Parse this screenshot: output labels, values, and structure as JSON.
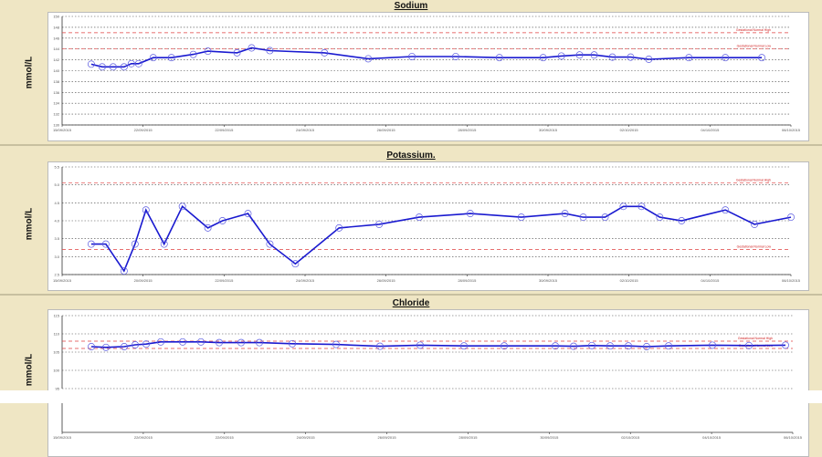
{
  "chart_data": [
    {
      "type": "line",
      "title": "Sodium",
      "ylabel": "mmol/L",
      "ylim": [
        130,
        150
      ],
      "yticks": [
        "150",
        "148",
        "146",
        "144",
        "142",
        "140",
        "138",
        "136",
        "134",
        "132",
        "130"
      ],
      "xlim": [
        0,
        100
      ],
      "xticks": [
        "15/09/2015",
        "22/09/2015",
        "22/09/2015",
        "24/09/2015",
        "26/09/2015",
        "28/09/2015",
        "30/09/2015",
        "02/10/2015",
        "04/10/2015",
        "06/10/2015"
      ],
      "ref_lines": [
        {
          "label": "Gestational Normal High",
          "value": 147
        },
        {
          "label": "Gestational Normal Low",
          "value": 144
        }
      ],
      "series": [
        {
          "points": [
            [
              4,
              141.2
            ],
            [
              5.5,
              140.7
            ],
            [
              7,
              140.7
            ],
            [
              8.5,
              140.7
            ],
            [
              9.5,
              141.3
            ],
            [
              10.5,
              141.3
            ],
            [
              12.5,
              142.4
            ],
            [
              15,
              142.4
            ],
            [
              18,
              143
            ],
            [
              20,
              143.6
            ],
            [
              24,
              143.3
            ],
            [
              26,
              144.2
            ],
            [
              28.5,
              143.7
            ],
            [
              36,
              143.3
            ],
            [
              42,
              142.2
            ],
            [
              48,
              142.6
            ],
            [
              54,
              142.6
            ],
            [
              60,
              142.4
            ],
            [
              66,
              142.4
            ],
            [
              68.5,
              142.7
            ],
            [
              71,
              142.9
            ],
            [
              73,
              142.9
            ],
            [
              75.5,
              142.5
            ],
            [
              78,
              142.5
            ],
            [
              80.5,
              142.1
            ],
            [
              86,
              142.4
            ],
            [
              91,
              142.4
            ],
            [
              96,
              142.4
            ]
          ]
        }
      ]
    },
    {
      "type": "line",
      "title": "Potassium.",
      "ylabel": "mmol/L",
      "ylim": [
        2.5,
        5.5
      ],
      "yticks": [
        "5.5",
        "5.0",
        "4.5",
        "4.0",
        "3.5",
        "3.0",
        "2.5"
      ],
      "xlim": [
        0,
        100
      ],
      "xticks": [
        "15/09/2015",
        "20/09/2015",
        "22/09/2015",
        "24/09/2015",
        "26/09/2015",
        "28/09/2015",
        "30/09/2015",
        "02/10/2015",
        "04/10/2015",
        "06/10/2015"
      ],
      "ref_lines": [
        {
          "label": "Gestational Normal High",
          "value": 5.05
        },
        {
          "label": "Gestational Normal Low",
          "value": 3.2
        }
      ],
      "series": [
        {
          "points": [
            [
              4,
              3.35
            ],
            [
              6,
              3.35
            ],
            [
              8.5,
              2.6
            ],
            [
              10,
              3.35
            ],
            [
              11.5,
              4.3
            ],
            [
              14,
              3.35
            ],
            [
              16.5,
              4.4
            ],
            [
              20,
              3.8
            ],
            [
              22,
              4.0
            ],
            [
              25.5,
              4.2
            ],
            [
              28.5,
              3.35
            ],
            [
              32,
              2.8
            ],
            [
              38,
              3.8
            ],
            [
              43.5,
              3.9
            ],
            [
              49,
              4.1
            ],
            [
              56,
              4.2
            ],
            [
              63,
              4.1
            ],
            [
              69,
              4.2
            ],
            [
              71.5,
              4.1
            ],
            [
              74.5,
              4.1
            ],
            [
              77,
              4.4
            ],
            [
              79.5,
              4.4
            ],
            [
              82,
              4.1
            ],
            [
              85,
              4.0
            ],
            [
              91,
              4.3
            ],
            [
              95,
              3.9
            ],
            [
              100,
              4.1
            ]
          ]
        }
      ]
    },
    {
      "type": "line",
      "title": "Chloride",
      "ylabel": "mmol/L",
      "ylim": [
        95,
        115
      ],
      "yticks": [
        "115",
        "110",
        "105",
        "100",
        "95"
      ],
      "xlim": [
        0,
        100
      ],
      "xticks": [
        "15/09/2015",
        "22/09/2015",
        "22/09/2015",
        "24/09/2015",
        "26/09/2015",
        "28/09/2015",
        "30/09/2015",
        "02/10/2015",
        "04/10/2015",
        "06/10/2015"
      ],
      "ref_lines": [
        {
          "label": "Gestational Normal High",
          "value": 108
        },
        {
          "label": "Gestational Normal Low",
          "value": 106
        }
      ],
      "series": [
        {
          "points": [
            [
              4,
              106.5
            ],
            [
              6,
              106.3
            ],
            [
              8.5,
              106.5
            ],
            [
              10,
              107
            ],
            [
              11.5,
              107.2
            ],
            [
              13.5,
              107.8
            ],
            [
              16.5,
              107.8
            ],
            [
              19,
              107.8
            ],
            [
              21.5,
              107.6
            ],
            [
              24.5,
              107.6
            ],
            [
              27,
              107.6
            ],
            [
              31.5,
              107.3
            ],
            [
              37.5,
              107.1
            ],
            [
              43.5,
              106.6
            ],
            [
              49,
              106.9
            ],
            [
              55,
              106.7
            ],
            [
              60.5,
              106.7
            ],
            [
              67.5,
              106.7
            ],
            [
              70,
              106.6
            ],
            [
              72.5,
              106.8
            ],
            [
              75,
              106.7
            ],
            [
              77.5,
              106.7
            ],
            [
              80,
              106.5
            ],
            [
              83,
              106.7
            ],
            [
              89,
              106.9
            ],
            [
              94,
              106.8
            ],
            [
              99,
              106.9
            ]
          ]
        }
      ]
    }
  ]
}
